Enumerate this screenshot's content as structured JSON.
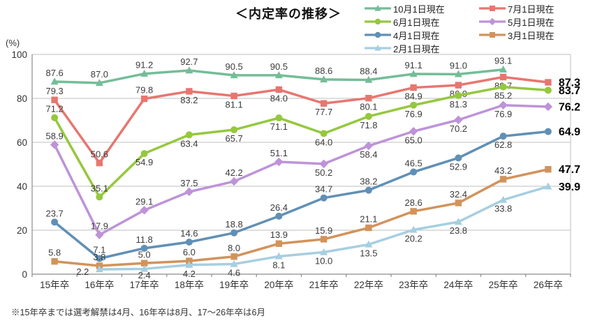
{
  "chart_data": {
    "type": "line",
    "title": "＜内定率の推移＞",
    "ylabel": "(%)",
    "xlabel": "",
    "ylim": [
      0,
      100
    ],
    "y_ticks": [
      0,
      20,
      40,
      60,
      80,
      100
    ],
    "grid": true,
    "legend_position": "top-right",
    "categories": [
      "15年卒",
      "16年卒",
      "17年卒",
      "18年卒",
      "19年卒",
      "20年卒",
      "21年卒",
      "22年卒",
      "23年卒",
      "24年卒",
      "25年卒",
      "26年卒"
    ],
    "series": [
      {
        "name": "10月1日現在",
        "color": "#74BD98",
        "marker": "triangle",
        "values": [
          87.6,
          87.0,
          91.2,
          92.7,
          90.5,
          90.5,
          88.6,
          88.4,
          91.1,
          91.0,
          93.1,
          null
        ],
        "label_pos": [
          "a",
          "a",
          "a",
          "a",
          "a",
          "a",
          "a",
          "a",
          "a",
          "a",
          "a",
          null
        ]
      },
      {
        "name": "7月1日現在",
        "color": "#E8766F",
        "marker": "square",
        "values": [
          79.3,
          50.6,
          79.8,
          83.2,
          81.1,
          84.0,
          77.7,
          80.1,
          84.9,
          86.0,
          89.7,
          87.3
        ],
        "label_pos": [
          "a",
          "a",
          "a",
          "b",
          "b",
          "b",
          "b",
          "b",
          "b",
          "b",
          "b",
          "e"
        ]
      },
      {
        "name": "6月1日現在",
        "color": "#95C83E",
        "marker": "circle",
        "values": [
          71.2,
          35.1,
          54.9,
          63.4,
          65.7,
          71.1,
          64.0,
          71.8,
          76.9,
          81.3,
          85.2,
          83.7
        ],
        "label_pos": [
          "a",
          "a",
          "b",
          "b",
          "b",
          "b",
          "b",
          "b",
          "b",
          "b",
          "b",
          "e"
        ]
      },
      {
        "name": "5月1日現在",
        "color": "#BE93D8",
        "marker": "diamond",
        "values": [
          58.9,
          17.9,
          29.1,
          37.5,
          42.2,
          51.1,
          50.2,
          58.4,
          65.0,
          70.2,
          76.9,
          76.2
        ],
        "label_pos": [
          "a",
          "a",
          "a",
          "a",
          "a",
          "a",
          "b",
          "b",
          "b",
          "b",
          "b",
          "e"
        ]
      },
      {
        "name": "4月1日現在",
        "color": "#6090B6",
        "marker": "circle",
        "values": [
          23.7,
          7.1,
          11.8,
          14.6,
          18.8,
          26.4,
          34.7,
          38.2,
          46.5,
          52.9,
          62.8,
          64.9
        ],
        "label_pos": [
          "a",
          "a",
          "a",
          "a",
          "a",
          "a",
          "a",
          "a",
          "a",
          "b",
          "b",
          "e"
        ]
      },
      {
        "name": "3月1日現在",
        "color": "#D2935B",
        "marker": "square",
        "values": [
          5.8,
          3.8,
          5.0,
          6.0,
          8.0,
          13.9,
          15.9,
          21.1,
          28.6,
          32.4,
          43.2,
          47.7
        ],
        "label_pos": [
          "a",
          "a",
          "a",
          "a",
          "a",
          "a",
          "a",
          "a",
          "a",
          "a",
          "a",
          "e"
        ]
      },
      {
        "name": "2月1日現在",
        "color": "#A6CFE0",
        "marker": "triangle",
        "values": [
          null,
          2.2,
          2.4,
          4.2,
          4.6,
          8.1,
          10.0,
          13.5,
          20.2,
          23.8,
          33.8,
          39.9
        ],
        "label_pos": [
          null,
          "b",
          "b",
          "b",
          "b",
          "b",
          "b",
          "b",
          "b",
          "b",
          "b",
          "e"
        ]
      }
    ],
    "label_overrides": [
      {
        "series": 6,
        "index": 1,
        "dx": -24,
        "dy": 8
      }
    ],
    "end_bold_labels": [
      87.3,
      83.7,
      76.2,
      64.9,
      47.7,
      39.9
    ],
    "footnote": "※15年卒までは選考解禁は4月、16年卒は8月、17～26年卒は6月"
  }
}
